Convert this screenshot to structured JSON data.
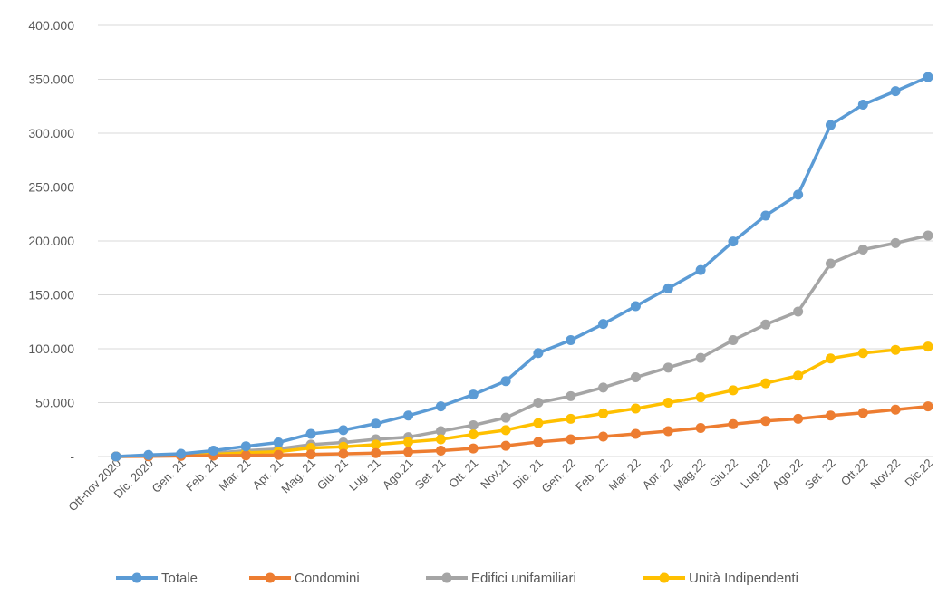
{
  "chart_data": {
    "type": "line",
    "title": "",
    "xlabel": "",
    "ylabel": "",
    "ylim": [
      0,
      400000
    ],
    "yticks": [
      {
        "value": 0,
        "label": "-"
      },
      {
        "value": 50000,
        "label": "50.000"
      },
      {
        "value": 100000,
        "label": "100.000"
      },
      {
        "value": 150000,
        "label": "150.000"
      },
      {
        "value": 200000,
        "label": "200.000"
      },
      {
        "value": 250000,
        "label": "250.000"
      },
      {
        "value": 300000,
        "label": "300.000"
      },
      {
        "value": 350000,
        "label": "350.000"
      },
      {
        "value": 400000,
        "label": "400.000"
      }
    ],
    "grid": true,
    "legend_position": "bottom",
    "categories": [
      "Ott-nov 2020",
      "Dic. 2020",
      "Gen. 21",
      "Feb. 21",
      "Mar. 21",
      "Apr. 21",
      "Mag. 21",
      "Giu. 21",
      "Lug. 21",
      "Ago.21",
      "Set. 21",
      "Ott. 21",
      "Nov.21",
      "Dic. 21",
      "Gen. 22",
      "Feb. 22",
      "Mar. 22",
      "Apr. 22",
      "Mag.22",
      "Giu.22",
      "Lug.22",
      "Ago.22",
      "Set. 22",
      "Ott.22",
      "Nov.22",
      "Dic.22"
    ],
    "series": [
      {
        "name": "Totale",
        "color": "#5B9BD5",
        "values": [
          0,
          1500,
          2500,
          5500,
          9500,
          13000,
          21000,
          24500,
          30500,
          38000,
          46500,
          57500,
          70000,
          96000,
          108000,
          123000,
          139500,
          156000,
          173000,
          199500,
          223500,
          243000,
          307500,
          326500,
          339000,
          352000
        ]
      },
      {
        "name": "Condomini",
        "color": "#ED7D31",
        "values": [
          0,
          200,
          500,
          800,
          1100,
          1500,
          2000,
          2500,
          3200,
          4200,
          5500,
          7500,
          10000,
          13500,
          16000,
          18500,
          21000,
          23500,
          26500,
          30000,
          33000,
          35000,
          38000,
          40500,
          43500,
          46500
        ]
      },
      {
        "name": "Edifici unifamiliari",
        "color": "#A5A5A5",
        "values": [
          0,
          800,
          1500,
          3000,
          5500,
          7000,
          11000,
          13000,
          16000,
          18000,
          23500,
          29000,
          36000,
          50000,
          56000,
          64000,
          73500,
          82500,
          91500,
          108000,
          122500,
          134500,
          179000,
          192000,
          198000,
          205000
        ]
      },
      {
        "name": "Unità Indipendenti",
        "color": "#FFC000",
        "values": [
          0,
          500,
          1000,
          2000,
          3500,
          4500,
          8000,
          9000,
          11000,
          13500,
          16000,
          20500,
          24500,
          31000,
          35000,
          40000,
          44500,
          50000,
          55000,
          61500,
          68000,
          75000,
          91000,
          96000,
          99000,
          102000
        ]
      }
    ]
  }
}
